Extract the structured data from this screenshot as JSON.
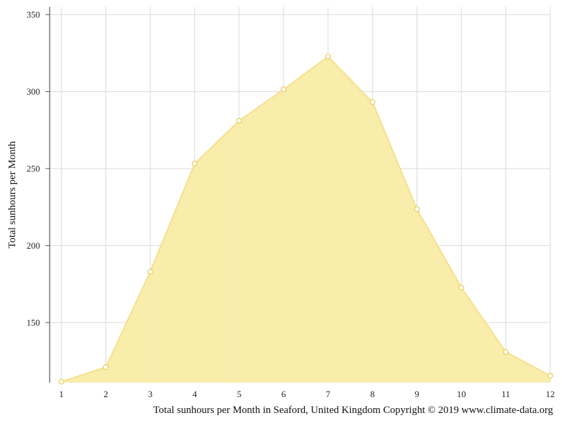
{
  "chart_data": {
    "type": "area",
    "title": "",
    "xlabel": "Total sunhours per Month in Seaford, United Kingdom Copyright © 2019 www.climate-data.org",
    "ylabel": "Total sunhours per Month",
    "x": [
      1,
      2,
      3,
      4,
      5,
      6,
      7,
      8,
      9,
      10,
      11,
      12
    ],
    "x_tick_labels": [
      "1",
      "2",
      "3",
      "4",
      "5",
      "6",
      "7",
      "8",
      "9",
      "10",
      "11",
      "12"
    ],
    "y_ticks": [
      150,
      200,
      250,
      300,
      350
    ],
    "y_tick_labels": [
      "150",
      "200",
      "250",
      "300",
      "350"
    ],
    "values": [
      111.6,
      121.1,
      183.1,
      253.2,
      281.1,
      301.4,
      322.7,
      293.2,
      223.7,
      172.7,
      130.9,
      115.5
    ],
    "ylim": [
      111,
      355
    ],
    "grid": true,
    "colors": {
      "fill": "#f9eca8",
      "line": "#f5e08a",
      "marker_fill": "#ffffff",
      "marker_stroke": "#e8cf5e",
      "grid": "#d9d9d9",
      "axis": "#555555"
    }
  }
}
